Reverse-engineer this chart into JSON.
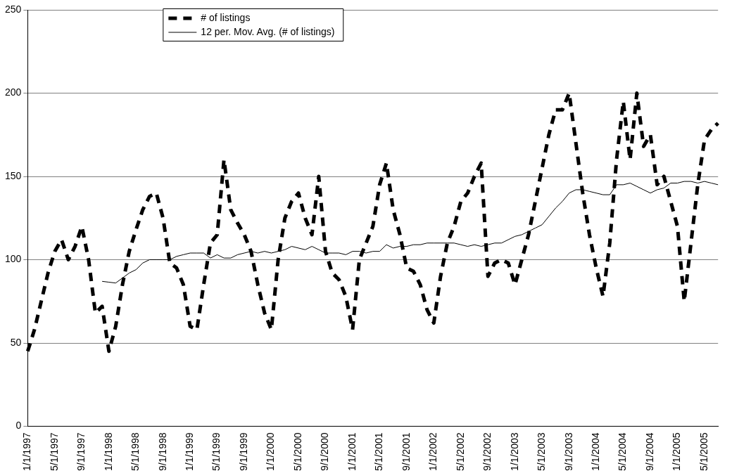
{
  "chart_data": {
    "type": "line",
    "categories": [
      "1/1/1997",
      null,
      null,
      null,
      "5/1/1997",
      null,
      null,
      null,
      "9/1/1997",
      null,
      null,
      null,
      "1/1/1998",
      null,
      null,
      null,
      "5/1/1998",
      null,
      null,
      null,
      "9/1/1998",
      null,
      null,
      null,
      "1/1/1999",
      null,
      null,
      null,
      "5/1/1999",
      null,
      null,
      null,
      "9/1/1999",
      null,
      null,
      null,
      "1/1/2000",
      null,
      null,
      null,
      "5/1/2000",
      null,
      null,
      null,
      "9/1/2000",
      null,
      null,
      null,
      "1/1/2001",
      null,
      null,
      null,
      "5/1/2001",
      null,
      null,
      null,
      "9/1/2001",
      null,
      null,
      null,
      "1/1/2002",
      null,
      null,
      null,
      "5/1/2002",
      null,
      null,
      null,
      "9/1/2002",
      null,
      null,
      null,
      "1/1/2003",
      null,
      null,
      null,
      "5/1/2003",
      null,
      null,
      null,
      "9/1/2003",
      null,
      null,
      null,
      "1/1/2004",
      null,
      null,
      null,
      "5/1/2004",
      null,
      null,
      null,
      "9/1/2004",
      null,
      null,
      null,
      "1/1/2005",
      null,
      null,
      null,
      "5/1/2005",
      null,
      null
    ],
    "series": [
      {
        "name": "# of listings",
        "color": "#000000",
        "line_style": "dashed",
        "values": [
          45,
          58,
          75,
          92,
          105,
          112,
          100,
          108,
          120,
          100,
          68,
          72,
          45,
          60,
          85,
          105,
          118,
          130,
          138,
          140,
          125,
          98,
          95,
          85,
          60,
          58,
          85,
          110,
          115,
          160,
          130,
          122,
          115,
          105,
          85,
          68,
          58,
          100,
          125,
          135,
          140,
          125,
          115,
          150,
          105,
          92,
          88,
          78,
          58,
          100,
          110,
          120,
          145,
          158,
          130,
          115,
          95,
          93,
          85,
          70,
          62,
          90,
          110,
          120,
          135,
          140,
          150,
          158,
          90,
          98,
          100,
          98,
          85,
          100,
          115,
          135,
          155,
          175,
          190,
          190,
          200,
          170,
          140,
          115,
          95,
          78,
          110,
          160,
          195,
          160,
          200,
          168,
          175,
          145,
          150,
          135,
          120,
          75,
          110,
          145,
          172,
          178,
          182
        ]
      },
      {
        "name": "12 per. Mov. Avg. (# of listings)",
        "color": "#000000",
        "line_style": "solid",
        "values": [
          null,
          null,
          null,
          null,
          null,
          null,
          null,
          null,
          null,
          null,
          null,
          87,
          86.5,
          86,
          89,
          92,
          94,
          98,
          100,
          100,
          100,
          100,
          102,
          103,
          104,
          104,
          104,
          101,
          103,
          101,
          101,
          103,
          104,
          105,
          104,
          105,
          104,
          105,
          106,
          108,
          107,
          106,
          108,
          106,
          104,
          104,
          104,
          103,
          105,
          105,
          104,
          105,
          105,
          109,
          107,
          108,
          108,
          109,
          109,
          110,
          110,
          110,
          110,
          110,
          109,
          108,
          109,
          108,
          109,
          110,
          110,
          112,
          114,
          115,
          117,
          119,
          121,
          126,
          131,
          135,
          140,
          142,
          142,
          141,
          140,
          139,
          139,
          145,
          145,
          146,
          144,
          142,
          140,
          142,
          143,
          146,
          146,
          147,
          147,
          146,
          147,
          146,
          145
        ]
      }
    ],
    "ylim": [
      0,
      250
    ],
    "yticks": [
      0,
      50,
      100,
      150,
      200,
      250
    ],
    "grid": "y",
    "legend": "top",
    "marker": "none"
  }
}
